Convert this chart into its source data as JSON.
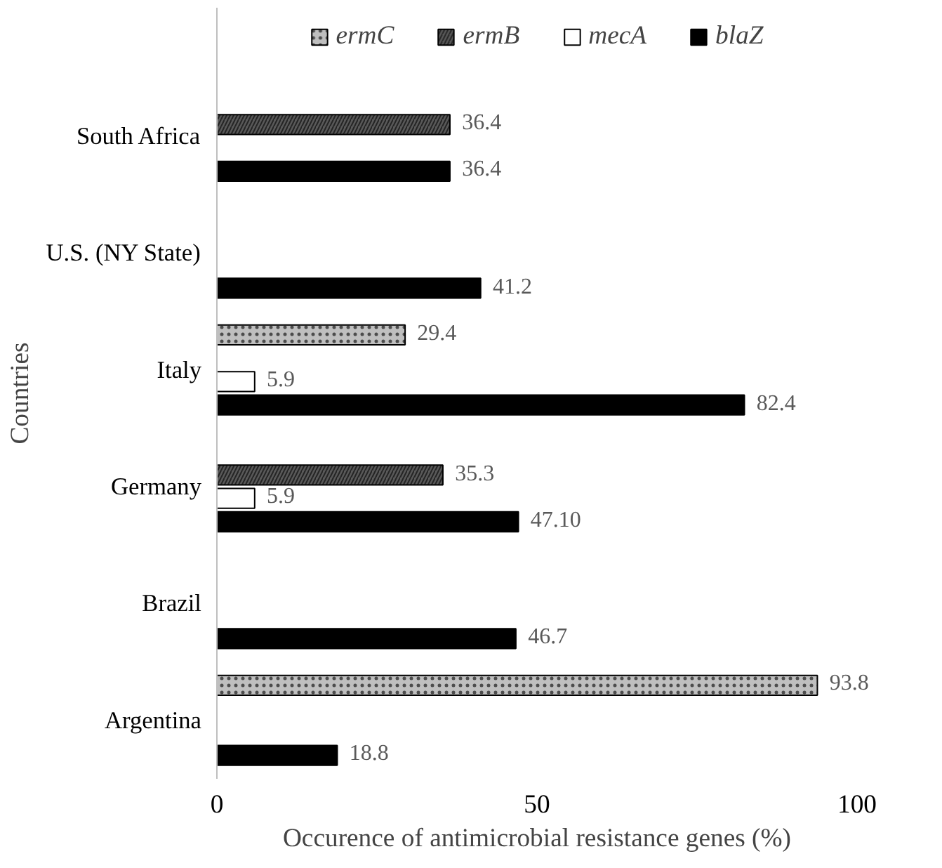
{
  "chart_data": {
    "type": "bar",
    "orientation": "horizontal",
    "xlabel": "Occurence of antimicrobial resistance genes (%)",
    "ylabel": "Countries",
    "categories": [
      "South Africa",
      "U.S. (NY State)",
      "Italy",
      "Germany",
      "Brazil",
      "Argentina"
    ],
    "series": [
      {
        "name": "ermC",
        "color": "#bfbfbf",
        "values": [
          null,
          null,
          29.4,
          null,
          null,
          93.8
        ],
        "value_labels": [
          null,
          null,
          "29.4",
          null,
          null,
          "93.8"
        ]
      },
      {
        "name": "ermB",
        "color": "#595959",
        "values": [
          36.4,
          null,
          null,
          35.3,
          null,
          null
        ],
        "value_labels": [
          "36.4",
          null,
          null,
          "35.3",
          null,
          null
        ]
      },
      {
        "name": "mecA",
        "color": "#ffffff",
        "values": [
          null,
          null,
          5.9,
          5.9,
          null,
          null
        ],
        "value_labels": [
          null,
          null,
          "5.9",
          "5.9",
          null,
          null
        ]
      },
      {
        "name": "blaZ",
        "color": "#000000",
        "values": [
          36.4,
          41.2,
          82.4,
          47.1,
          46.7,
          18.8
        ],
        "value_labels": [
          "36.4",
          "41.2",
          "82.4",
          "47.10",
          "46.7",
          "18.8"
        ]
      }
    ],
    "xlim": [
      0,
      100
    ],
    "xticks": [
      0,
      50,
      100
    ],
    "grid": false,
    "legend": "top"
  }
}
